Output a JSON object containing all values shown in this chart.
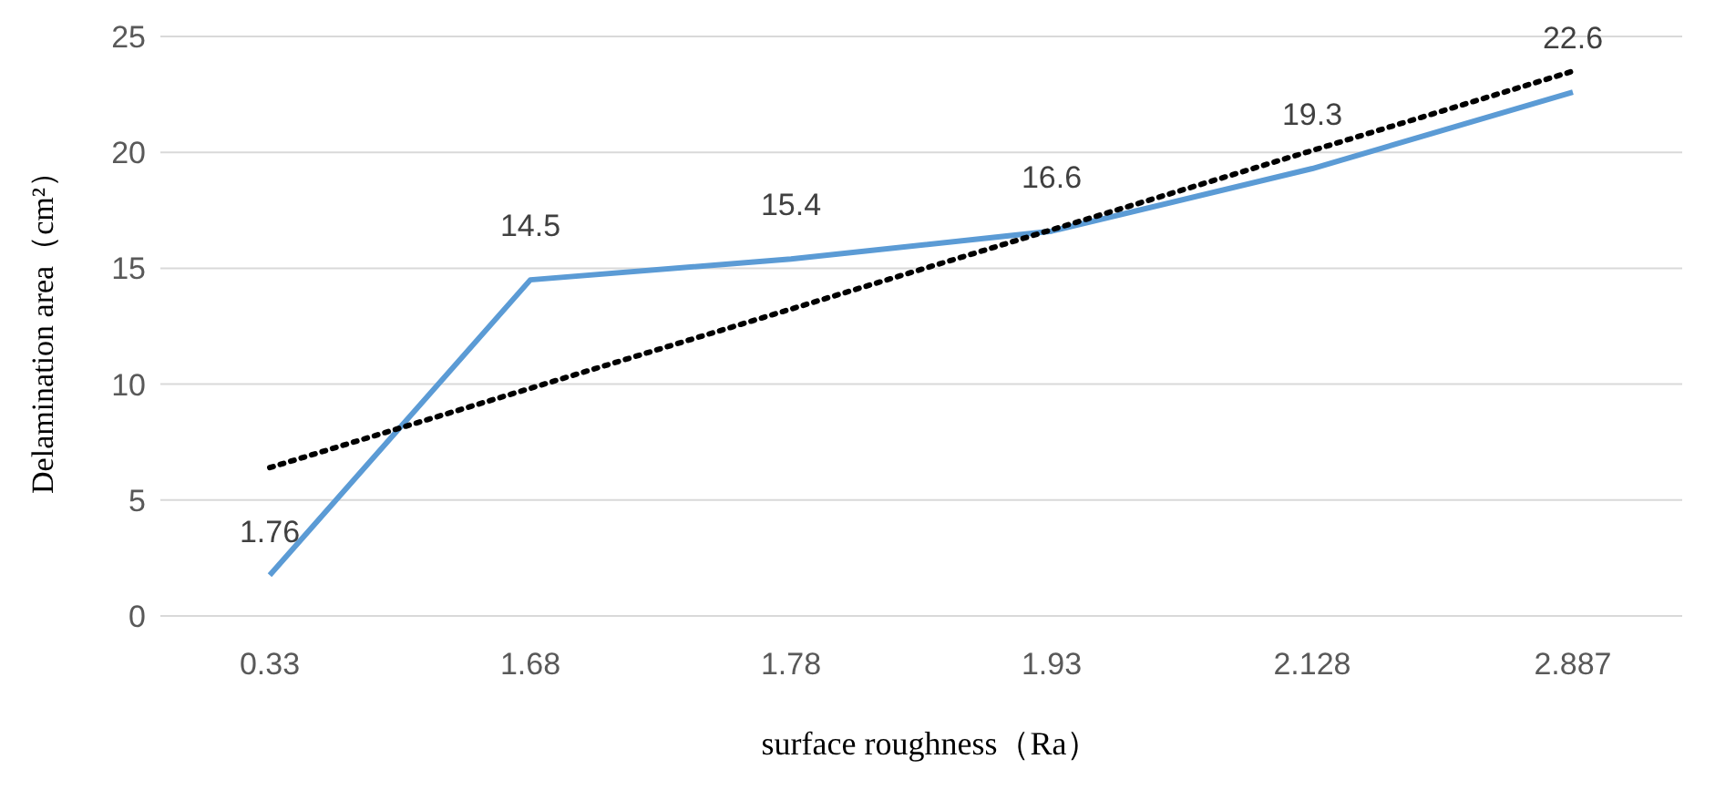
{
  "chart_data": {
    "type": "line",
    "xlabel": "surface roughness（Ra）",
    "ylabel": "Delamination area（cm²）",
    "categories": [
      "0.33",
      "1.68",
      "1.78",
      "1.93",
      "2.128",
      "2.887"
    ],
    "series": [
      {
        "color": "#5b9bd5",
        "values": [
          1.76,
          14.5,
          15.4,
          16.6,
          19.3,
          22.6
        ],
        "value_labels": [
          "1.76",
          "14.5",
          "15.4",
          "16.6",
          "19.3",
          "22.6"
        ]
      },
      {
        "type": "line",
        "color": "#000000",
        "line_style": "dotted",
        "x": [
          "0.33",
          "1.68",
          "1.78",
          "1.93",
          "2.128",
          "2.887"
        ],
        "values": [
          6.4,
          9.82,
          13.24,
          16.66,
          20.08,
          23.5
        ]
      }
    ],
    "ylim": [
      0,
      25
    ],
    "yticks": [
      0,
      5,
      10,
      15,
      20,
      25
    ],
    "grid": "y",
    "marker": "none"
  }
}
